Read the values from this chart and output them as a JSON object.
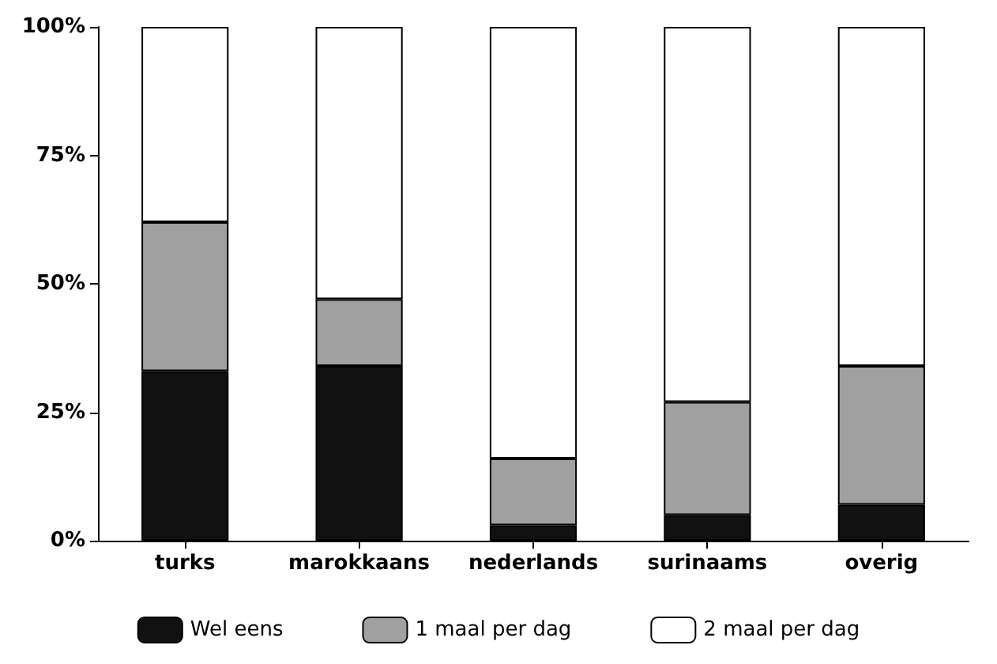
{
  "chart_data": {
    "type": "bar",
    "stacked": true,
    "categories": [
      "turks",
      "marokkaans",
      "nederlands",
      "surinaams",
      "overig"
    ],
    "series": [
      {
        "name": "Wel eens",
        "color": "#111111",
        "values": [
          33,
          34,
          3,
          5,
          7
        ]
      },
      {
        "name": "1 maal per dag",
        "color": "#a0a0a0",
        "values": [
          29,
          13,
          13,
          22,
          27
        ]
      },
      {
        "name": "2 maal per dag",
        "color": "#ffffff",
        "values": [
          38,
          53,
          84,
          73,
          66
        ]
      }
    ],
    "ylim": [
      0,
      100
    ],
    "yticks": [
      {
        "value": 0,
        "label": "0%"
      },
      {
        "value": 25,
        "label": "25%"
      },
      {
        "value": 50,
        "label": "50%"
      },
      {
        "value": 75,
        "label": "75%"
      },
      {
        "value": 100,
        "label": "100%"
      }
    ],
    "grid": false,
    "legend": "bottom"
  }
}
